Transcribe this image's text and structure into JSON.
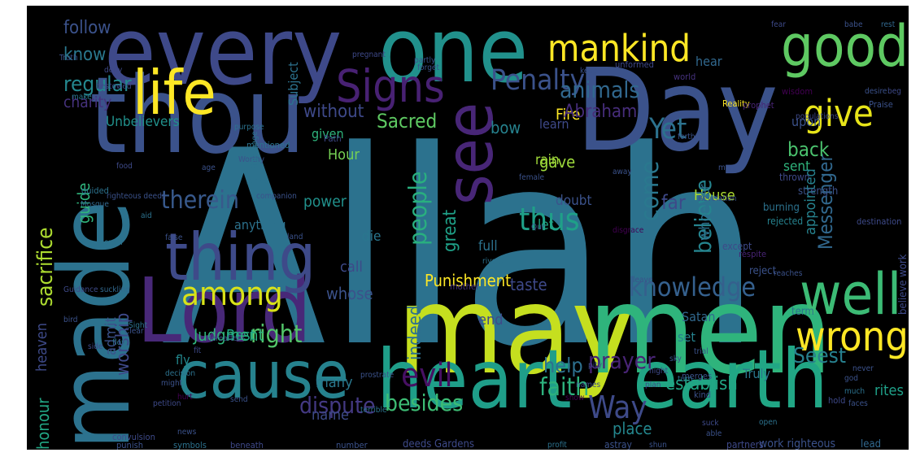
{
  "wordcloud": {
    "background": "#000000",
    "palette": {
      "purple": "#440154",
      "indigo": "#472d7b",
      "blue": "#3b528b",
      "steel": "#2c728e",
      "teal": "#21918c",
      "sea": "#28ae80",
      "green": "#5ec962",
      "lime": "#addc30",
      "yellow": "#fde725"
    },
    "words": [
      {
        "text": "Allah",
        "color": "#2c728e"
      },
      {
        "text": "may",
        "color": "#c5df1f"
      },
      {
        "text": "men",
        "color": "#2fb47c"
      },
      {
        "text": "Day",
        "color": "#3b528b"
      },
      {
        "text": "one",
        "color": "#21918c"
      },
      {
        "text": "every",
        "color": "#3e4989"
      },
      {
        "text": "thou",
        "color": "#3b528b"
      },
      {
        "text": "Lord",
        "color": "#482878"
      },
      {
        "text": "made",
        "color": "#2c728e"
      },
      {
        "text": "earth",
        "color": "#21a685"
      },
      {
        "text": "heart",
        "color": "#1f9e89"
      },
      {
        "text": "cause",
        "color": "#26828e"
      },
      {
        "text": "thing",
        "color": "#3e4a89"
      },
      {
        "text": "life",
        "color": "#fde725"
      },
      {
        "text": "good",
        "color": "#5ec962"
      },
      {
        "text": "see",
        "color": "#482677"
      },
      {
        "text": "well",
        "color": "#3cbb75"
      },
      {
        "text": "Signs",
        "color": "#482173"
      },
      {
        "text": "mankind",
        "color": "#fde725"
      },
      {
        "text": "give",
        "color": "#e7e419"
      },
      {
        "text": "wrong",
        "color": "#fde725"
      },
      {
        "text": "knowledge",
        "color": "#35608d"
      },
      {
        "text": "Penalty",
        "color": "#3b528b"
      },
      {
        "text": "Yet",
        "color": "#2c728e"
      },
      {
        "text": "among",
        "color": "#d8e219"
      },
      {
        "text": "thus",
        "color": "#1fa088"
      },
      {
        "text": "people",
        "color": "#29af7f"
      },
      {
        "text": "therein",
        "color": "#38598c"
      },
      {
        "text": "come",
        "color": "#2a788e"
      },
      {
        "text": "evil",
        "color": "#471063"
      },
      {
        "text": "prayer",
        "color": "#482475"
      },
      {
        "text": "Way",
        "color": "#3e4a89"
      },
      {
        "text": "animals",
        "color": "#31688e"
      },
      {
        "text": "right",
        "color": "#52c569"
      },
      {
        "text": "believe",
        "color": "#25848e"
      },
      {
        "text": "Seest",
        "color": "#27808e"
      },
      {
        "text": "faith",
        "color": "#2db27d"
      },
      {
        "text": "establish",
        "color": "#22a785"
      },
      {
        "text": "dispute",
        "color": "#443983"
      },
      {
        "text": "besides",
        "color": "#3dbc74"
      },
      {
        "text": "help",
        "color": "#2d708e"
      },
      {
        "text": "Messenger",
        "color": "#31688e"
      },
      {
        "text": "Punishment",
        "color": "#fde725"
      },
      {
        "text": "regular",
        "color": "#24878e"
      },
      {
        "text": "sacrifice",
        "color": "#addc30"
      },
      {
        "text": "heaven",
        "color": "#3e4a89"
      },
      {
        "text": "admit",
        "color": "#3b528b"
      },
      {
        "text": "honour",
        "color": "#22a785"
      },
      {
        "text": "Judgment",
        "color": "#2fb47c"
      },
      {
        "text": "without",
        "color": "#3e4989"
      },
      {
        "text": "back",
        "color": "#4ac16d"
      },
      {
        "text": "Fire",
        "color": "#fde725"
      },
      {
        "text": "know",
        "color": "#2a788e"
      },
      {
        "text": "follow",
        "color": "#3b528b"
      },
      {
        "text": "charity",
        "color": "#46327e"
      },
      {
        "text": "Unbelievers",
        "color": "#21918c"
      },
      {
        "text": "Sacred",
        "color": "#5ec962"
      },
      {
        "text": "Abraham",
        "color": "#472d7b"
      },
      {
        "text": "bow",
        "color": "#26828e"
      },
      {
        "text": "rain",
        "color": "#a0da39"
      },
      {
        "text": "gave",
        "color": "#9dd93b"
      },
      {
        "text": "sent",
        "color": "#2fb47c"
      },
      {
        "text": "far",
        "color": "#3e4989"
      },
      {
        "text": "Hour",
        "color": "#75d054"
      },
      {
        "text": "doubt",
        "color": "#3b528b"
      },
      {
        "text": "House",
        "color": "#addc30"
      },
      {
        "text": "appointed",
        "color": "#26828e"
      },
      {
        "text": "whoever",
        "color": "#2c728e"
      },
      {
        "text": "guide",
        "color": "#2fb47c"
      },
      {
        "text": "power",
        "color": "#21918c"
      },
      {
        "text": "anything",
        "color": "#2c728e"
      },
      {
        "text": "let",
        "color": "#22a785"
      },
      {
        "text": "great",
        "color": "#1fa188"
      },
      {
        "text": "full",
        "color": "#2c728e"
      },
      {
        "text": "die",
        "color": "#2a768e"
      },
      {
        "text": "call",
        "color": "#3e4a89"
      },
      {
        "text": "whose",
        "color": "#3b528b"
      },
      {
        "text": "taste",
        "color": "#3e4989"
      },
      {
        "text": "indeed",
        "color": "#2d708e"
      },
      {
        "text": "end",
        "color": "#3e4a89"
      },
      {
        "text": "Satan",
        "color": "#31688e"
      },
      {
        "text": "set",
        "color": "#26828e"
      },
      {
        "text": "Truly",
        "color": "#2a788e"
      },
      {
        "text": "rites",
        "color": "#1fa088"
      },
      {
        "text": "worship",
        "color": "#3e4989"
      },
      {
        "text": "fly",
        "color": "#23888e"
      },
      {
        "text": "Best",
        "color": "#22a785"
      },
      {
        "text": "many",
        "color": "#2a788e"
      },
      {
        "text": "name",
        "color": "#3e4a89"
      },
      {
        "text": "place",
        "color": "#24878e"
      },
      {
        "text": "given",
        "color": "#2fb47c"
      },
      {
        "text": "upon",
        "color": "#3b528b"
      },
      {
        "text": "hear",
        "color": "#31688e"
      },
      {
        "text": "learn",
        "color": "#3e4989"
      },
      {
        "text": "Subject",
        "color": "#2c728e"
      },
      {
        "text": "work righteous",
        "color": "#3b528b"
      },
      {
        "text": "deeds Gardens",
        "color": "#3e4a89"
      },
      {
        "text": "believe work",
        "color": "#3e4a89"
      },
      {
        "text": "reject",
        "color": "#3b528b"
      },
      {
        "text": "term",
        "color": "#2c728e"
      },
      {
        "text": "astray",
        "color": "#3b528b"
      },
      {
        "text": "partners",
        "color": "#3e4989"
      },
      {
        "text": "lead",
        "color": "#31688e"
      },
      {
        "text": "strength",
        "color": "#3b528b"
      },
      {
        "text": "burning",
        "color": "#2c728e"
      },
      {
        "text": "thrown",
        "color": "#3e4a89"
      },
      {
        "text": "rejected",
        "color": "#26828e"
      },
      {
        "text": "except",
        "color": "#3e4989"
      },
      {
        "text": "respite",
        "color": "#482475"
      },
      {
        "text": "destination",
        "color": "#3e4a89"
      },
      {
        "text": "Praise",
        "color": "#3b528b"
      },
      {
        "text": "wisdom",
        "color": "#440154"
      },
      {
        "text": "Reality",
        "color": "#fde725"
      },
      {
        "text": "prophet",
        "color": "#482475"
      },
      {
        "text": "populations",
        "color": "#3e4a89"
      },
      {
        "text": "world",
        "color": "#46327e"
      },
      {
        "text": "keep",
        "color": "#3b528b"
      },
      {
        "text": "unformed",
        "color": "#3e4989"
      },
      {
        "text": "fear",
        "color": "#3e4a89"
      },
      {
        "text": "babe",
        "color": "#3b528b"
      },
      {
        "text": "rest",
        "color": "#31688e"
      },
      {
        "text": "beg",
        "color": "#3e4a89"
      },
      {
        "text": "desire",
        "color": "#3b528b"
      },
      {
        "text": "deny",
        "color": "#3e4989"
      },
      {
        "text": "bestowed",
        "color": "#3e4a89"
      },
      {
        "text": "make",
        "color": "#2a788e"
      },
      {
        "text": "Truth",
        "color": "#3b528b"
      },
      {
        "text": "Path",
        "color": "#3e4989"
      },
      {
        "text": "food",
        "color": "#3e4a89"
      },
      {
        "text": "righteous deeds",
        "color": "#3b528b"
      },
      {
        "text": "guided",
        "color": "#2c728e"
      },
      {
        "text": "Mosque",
        "color": "#31688e"
      },
      {
        "text": "Worthy",
        "color": "#3b528b"
      },
      {
        "text": "mentioned",
        "color": "#2c728e"
      },
      {
        "text": "strive",
        "color": "#2c728e"
      },
      {
        "text": "companion",
        "color": "#3b528b"
      },
      {
        "text": "Pilgrimage",
        "color": "#2c728e"
      },
      {
        "text": "aid",
        "color": "#2c728e"
      },
      {
        "text": "false",
        "color": "#3b528b"
      },
      {
        "text": "order",
        "color": "#2c728e"
      },
      {
        "text": "Guidance",
        "color": "#3e4a89"
      },
      {
        "text": "disgrace",
        "color": "#440154"
      },
      {
        "text": "land",
        "color": "#3b528b"
      },
      {
        "text": "forth",
        "color": "#3b528b"
      },
      {
        "text": "Revelation",
        "color": "#3b528b"
      },
      {
        "text": "mother",
        "color": "#46327e"
      },
      {
        "text": "rivers",
        "color": "#2c728e"
      },
      {
        "text": "leave",
        "color": "#3b528b"
      },
      {
        "text": "reaches",
        "color": "#3b528b"
      },
      {
        "text": "suckling",
        "color": "#31688e"
      },
      {
        "text": "bird",
        "color": "#3b528b"
      },
      {
        "text": "Sight",
        "color": "#2c728e"
      },
      {
        "text": "side",
        "color": "#3e4a89"
      },
      {
        "text": "Clear",
        "color": "#3b528b"
      },
      {
        "text": "flow",
        "color": "#2c728e"
      },
      {
        "text": "might",
        "color": "#3b528b"
      },
      {
        "text": "fit",
        "color": "#3e4989"
      },
      {
        "text": "Hereafter",
        "color": "#3b528b"
      },
      {
        "text": "decision",
        "color": "#2c728e"
      },
      {
        "text": "petition",
        "color": "#3e4a89"
      },
      {
        "text": "send",
        "color": "#3b528b"
      },
      {
        "text": "hurt",
        "color": "#440154"
      },
      {
        "text": "convulsion",
        "color": "#3e4a89"
      },
      {
        "text": "news",
        "color": "#3b528b"
      },
      {
        "text": "prostrate",
        "color": "#3b528b"
      },
      {
        "text": "terrible",
        "color": "#2c728e"
      },
      {
        "text": "punish",
        "color": "#3b528b"
      },
      {
        "text": "symbols",
        "color": "#2c728e"
      },
      {
        "text": "beneath",
        "color": "#3e4989"
      },
      {
        "text": "number",
        "color": "#3b528b"
      },
      {
        "text": "profit",
        "color": "#2c728e"
      },
      {
        "text": "shun",
        "color": "#3b528b"
      },
      {
        "text": "suck",
        "color": "#3e4a89"
      },
      {
        "text": "able",
        "color": "#3b528b"
      },
      {
        "text": "open",
        "color": "#2c728e"
      },
      {
        "text": "kind",
        "color": "#3b528b"
      },
      {
        "text": "hold",
        "color": "#3e4989"
      },
      {
        "text": "god",
        "color": "#3b528b"
      },
      {
        "text": "much",
        "color": "#2c728e"
      },
      {
        "text": "never",
        "color": "#3b528b"
      },
      {
        "text": "faces",
        "color": "#3b528b"
      },
      {
        "text": "merges",
        "color": "#3b528b"
      },
      {
        "text": "names",
        "color": "#3e4a89"
      },
      {
        "text": "sky",
        "color": "#3b528b"
      },
      {
        "text": "turn",
        "color": "#2c728e"
      },
      {
        "text": "night",
        "color": "#3e4989"
      },
      {
        "text": "plan",
        "color": "#3e4a89"
      },
      {
        "text": "trial",
        "color": "#3b528b"
      },
      {
        "text": "pregnant",
        "color": "#3e4989"
      },
      {
        "text": "partly",
        "color": "#3b528b"
      },
      {
        "text": "forget",
        "color": "#3b528b"
      },
      {
        "text": "man",
        "color": "#3b528b"
      },
      {
        "text": "female",
        "color": "#3b528b"
      },
      {
        "text": "away",
        "color": "#3b528b"
      },
      {
        "text": "purpose",
        "color": "#2c728e"
      },
      {
        "text": "age",
        "color": "#3b528b"
      },
      {
        "text": "Qur",
        "color": "#3b528b"
      },
      {
        "text": "show",
        "color": "#440154"
      },
      {
        "text": "pity",
        "color": "#3e4a89"
      }
    ]
  }
}
